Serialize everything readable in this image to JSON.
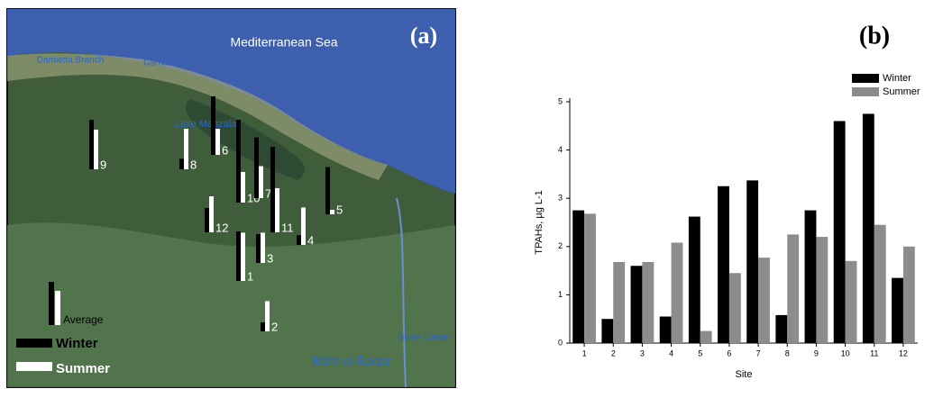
{
  "map": {
    "label": "(a)",
    "sea": "Mediterranean Sea",
    "places": [
      "Damietta Branch",
      "Gamasa",
      "Lake Manzala",
      "Suez Canal",
      "Bahr-el-Baqar"
    ],
    "sites": [
      "9",
      "8",
      "6",
      "10",
      "7",
      "12",
      "11",
      "5",
      "4",
      "3",
      "1",
      "2"
    ],
    "average": "Average",
    "legend": [
      "Winter",
      "Summer"
    ]
  },
  "chart_data": {
    "type": "bar",
    "label": "(b)",
    "x_label": "Site",
    "y_label": "TPAHs, µg L-1",
    "categories": [
      "1",
      "2",
      "3",
      "4",
      "5",
      "6",
      "7",
      "8",
      "9",
      "10",
      "11",
      "12"
    ],
    "series": [
      {
        "name": "Winter",
        "color": "#000000",
        "values": [
          2.75,
          0.5,
          1.6,
          0.55,
          2.62,
          3.25,
          3.37,
          0.58,
          2.75,
          4.6,
          4.75,
          1.35
        ]
      },
      {
        "name": "Summer",
        "color": "#8c8c8c",
        "values": [
          2.68,
          1.68,
          1.68,
          2.08,
          0.25,
          1.45,
          1.77,
          2.25,
          2.2,
          1.7,
          2.45,
          2.0
        ]
      }
    ],
    "ylim": [
      0,
      5
    ],
    "yticks": [
      0,
      1,
      2,
      3,
      4,
      5
    ],
    "legend": "top-right"
  }
}
